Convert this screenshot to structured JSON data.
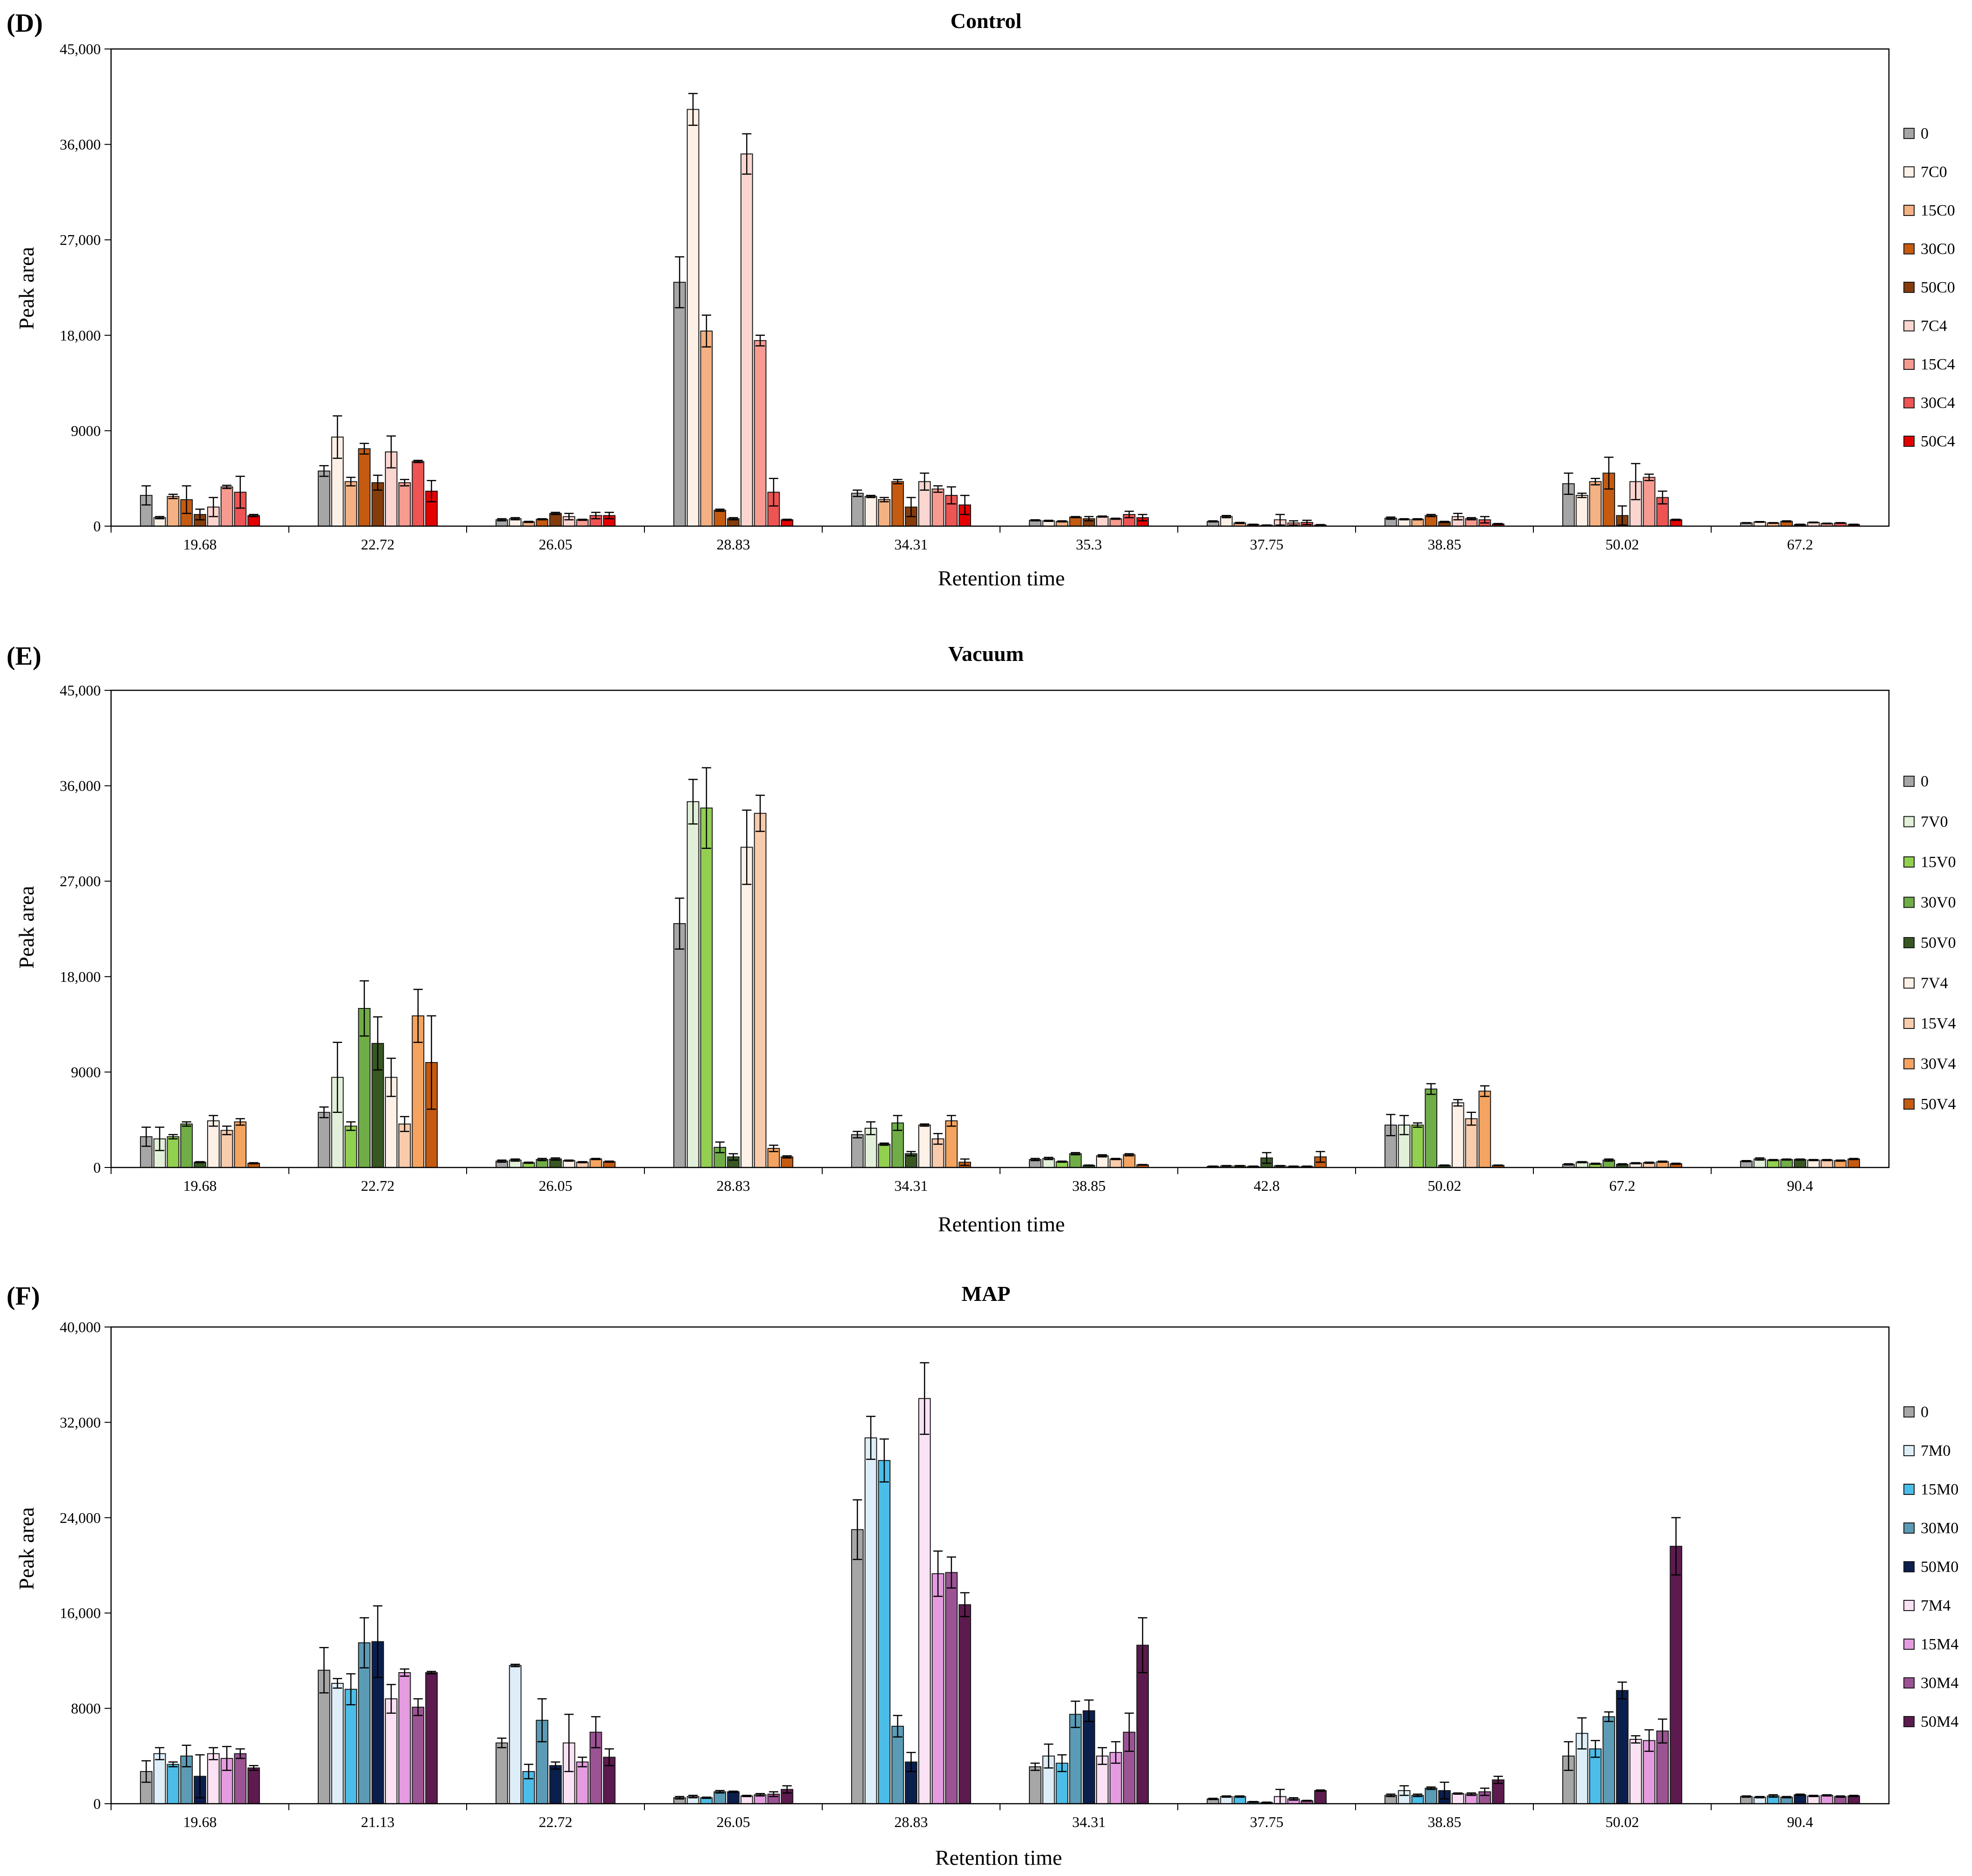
{
  "chart_data": [
    {
      "type": "bar",
      "panel_label": "(D)",
      "title": "Control",
      "xlabel": "Retention time",
      "ylabel": "Peak area",
      "ylim": [
        0,
        45000
      ],
      "yticks": [
        "0",
        "9000",
        "18,000",
        "27,000",
        "36,000",
        "45,000"
      ],
      "legend_position": "right",
      "categories": [
        "19.68",
        "22.72",
        "26.05",
        "28.83",
        "34.31",
        "35.3",
        "37.75",
        "38.85",
        "50.02",
        "67.2"
      ],
      "series": [
        {
          "name": "0",
          "color": "#a6a6a6",
          "values": [
            2900,
            5200,
            600,
            23000,
            3100,
            550,
            450,
            750,
            4000,
            300
          ],
          "errors": [
            900,
            500,
            100,
            2400,
            300,
            50,
            50,
            100,
            1000,
            30
          ]
        },
        {
          "name": "7C0",
          "color": "#fdf0e6",
          "values": [
            800,
            8400,
            700,
            39300,
            2800,
            500,
            900,
            650,
            2900,
            400
          ],
          "errors": [
            100,
            2000,
            100,
            1500,
            100,
            50,
            100,
            50,
            200,
            30
          ]
        },
        {
          "name": "15C0",
          "color": "#f4b183",
          "values": [
            2800,
            4200,
            400,
            18400,
            2500,
            450,
            300,
            650,
            4200,
            300
          ],
          "errors": [
            200,
            400,
            50,
            1500,
            200,
            50,
            50,
            50,
            300,
            30
          ]
        },
        {
          "name": "30C0",
          "color": "#c55a11",
          "values": [
            2500,
            7300,
            650,
            1500,
            4200,
            850,
            150,
            1000,
            5000,
            450
          ],
          "errors": [
            1300,
            500,
            50,
            100,
            200,
            50,
            30,
            100,
            1500,
            50
          ]
        },
        {
          "name": "50C0",
          "color": "#843c0c",
          "values": [
            1100,
            4100,
            1200,
            700,
            1800,
            700,
            80,
            400,
            1000,
            150
          ],
          "errors": [
            500,
            700,
            100,
            100,
            900,
            200,
            30,
            50,
            900,
            30
          ]
        },
        {
          "name": "7C4",
          "color": "#fbd5cf",
          "values": [
            1800,
            7000,
            900,
            35100,
            4200,
            900,
            600,
            900,
            4200,
            350
          ],
          "errors": [
            900,
            1500,
            300,
            1900,
            800,
            50,
            500,
            300,
            1700,
            30
          ]
        },
        {
          "name": "15C4",
          "color": "#f79b91",
          "values": [
            3700,
            4100,
            600,
            17500,
            3500,
            700,
            300,
            700,
            4600,
            250
          ],
          "errors": [
            150,
            300,
            50,
            500,
            300,
            50,
            200,
            100,
            300,
            30
          ]
        },
        {
          "name": "30C4",
          "color": "#ee5454",
          "values": [
            3200,
            6100,
            1000,
            3200,
            2900,
            1100,
            350,
            600,
            2700,
            300
          ],
          "errors": [
            1500,
            100,
            300,
            1300,
            800,
            300,
            200,
            300,
            600,
            30
          ]
        },
        {
          "name": "50C4",
          "color": "#e50000",
          "values": [
            1000,
            3300,
            1000,
            600,
            2000,
            800,
            100,
            200,
            600,
            150
          ],
          "errors": [
            100,
            1000,
            300,
            50,
            900,
            300,
            50,
            50,
            50,
            30
          ]
        }
      ]
    },
    {
      "type": "bar",
      "panel_label": "(E)",
      "title": "Vacuum",
      "xlabel": "Retention time",
      "ylabel": "Peak area",
      "ylim": [
        0,
        45000
      ],
      "yticks": [
        "0",
        "9000",
        "18,000",
        "27,000",
        "36,000",
        "45,000"
      ],
      "legend_position": "right",
      "categories": [
        "19.68",
        "22.72",
        "26.05",
        "28.83",
        "34.31",
        "38.85",
        "42.8",
        "50.02",
        "67.2",
        "90.4"
      ],
      "series": [
        {
          "name": "0",
          "color": "#a6a6a6",
          "values": [
            2900,
            5200,
            600,
            23000,
            3100,
            750,
            100,
            4000,
            300,
            600
          ],
          "errors": [
            900,
            500,
            100,
            2400,
            300,
            100,
            30,
            1000,
            50,
            50
          ]
        },
        {
          "name": "7V0",
          "color": "#e2f0d9",
          "values": [
            2700,
            8500,
            700,
            34500,
            3700,
            850,
            150,
            4000,
            500,
            800
          ],
          "errors": [
            1100,
            3300,
            100,
            2100,
            600,
            100,
            30,
            900,
            50,
            100
          ]
        },
        {
          "name": "15V0",
          "color": "#92d050",
          "values": [
            2900,
            3900,
            450,
            33900,
            2200,
            550,
            150,
            4000,
            350,
            700
          ],
          "errors": [
            200,
            400,
            50,
            3800,
            100,
            50,
            30,
            200,
            50,
            50
          ]
        },
        {
          "name": "30V0",
          "color": "#70ad47",
          "values": [
            4100,
            15000,
            750,
            1900,
            4200,
            1300,
            100,
            7400,
            700,
            750
          ],
          "errors": [
            200,
            2600,
            100,
            500,
            700,
            100,
            30,
            500,
            100,
            50
          ]
        },
        {
          "name": "50V0",
          "color": "#385723",
          "values": [
            500,
            11700,
            800,
            1000,
            1300,
            200,
            900,
            200,
            300,
            750
          ],
          "errors": [
            50,
            2500,
            100,
            300,
            200,
            30,
            500,
            30,
            50,
            50
          ]
        },
        {
          "name": "7V4",
          "color": "#fdf0e6",
          "values": [
            4400,
            8500,
            650,
            30200,
            4000,
            1100,
            150,
            6100,
            400,
            700
          ],
          "errors": [
            500,
            1800,
            50,
            3500,
            100,
            100,
            30,
            300,
            50,
            50
          ]
        },
        {
          "name": "15V4",
          "color": "#f8cbad",
          "values": [
            3500,
            4100,
            500,
            33400,
            2700,
            800,
            100,
            4600,
            450,
            700
          ],
          "errors": [
            400,
            700,
            50,
            1700,
            500,
            50,
            30,
            600,
            50,
            50
          ]
        },
        {
          "name": "30V4",
          "color": "#f4a460",
          "values": [
            4300,
            14300,
            800,
            1800,
            4400,
            1200,
            100,
            7200,
            550,
            650
          ],
          "errors": [
            300,
            2500,
            50,
            300,
            500,
            100,
            30,
            500,
            50,
            50
          ]
        },
        {
          "name": "50V4",
          "color": "#c55a11",
          "values": [
            400,
            9900,
            550,
            1000,
            500,
            250,
            1000,
            200,
            350,
            800
          ],
          "errors": [
            50,
            4400,
            50,
            100,
            300,
            30,
            500,
            30,
            50,
            50
          ]
        }
      ]
    },
    {
      "type": "bar",
      "panel_label": "(F)",
      "title": "MAP",
      "xlabel": "Retention time",
      "ylabel": "Peak area",
      "ylim": [
        0,
        40000
      ],
      "yticks": [
        "0",
        "8000",
        "16,000",
        "24,000",
        "32,000",
        "40,000"
      ],
      "legend_position": "right",
      "categories": [
        "19.68",
        "21.13",
        "22.72",
        "26.05",
        "28.83",
        "34.31",
        "37.75",
        "38.85",
        "50.02",
        "90.4"
      ],
      "series": [
        {
          "name": "0",
          "color": "#a6a6a6",
          "values": [
            2700,
            11200,
            5100,
            500,
            23000,
            3100,
            400,
            700,
            4000,
            600
          ],
          "errors": [
            900,
            1900,
            400,
            100,
            2500,
            300,
            50,
            100,
            1200,
            50
          ]
        },
        {
          "name": "7M0",
          "color": "#deeef8",
          "values": [
            4200,
            10100,
            11600,
            600,
            30700,
            4000,
            600,
            1100,
            5900,
            550
          ],
          "errors": [
            500,
            400,
            100,
            100,
            1800,
            1000,
            50,
            400,
            1300,
            50
          ]
        },
        {
          "name": "15M0",
          "color": "#4cbde8",
          "values": [
            3300,
            9600,
            2700,
            500,
            28800,
            3400,
            600,
            700,
            4600,
            650
          ],
          "errors": [
            200,
            1300,
            600,
            50,
            1800,
            700,
            50,
            100,
            700,
            100
          ]
        },
        {
          "name": "30M0",
          "color": "#5b9bb5",
          "values": [
            4000,
            13500,
            7000,
            1000,
            6500,
            7500,
            150,
            1300,
            7300,
            550
          ],
          "errors": [
            900,
            2100,
            1800,
            100,
            900,
            1100,
            30,
            100,
            400,
            50
          ]
        },
        {
          "name": "50M0",
          "color": "#0b1f4d",
          "values": [
            2300,
            13600,
            3200,
            1000,
            3500,
            7800,
            100,
            1100,
            9500,
            750
          ],
          "errors": [
            1800,
            3000,
            300,
            50,
            800,
            900,
            30,
            700,
            700,
            50
          ]
        },
        {
          "name": "7M4",
          "color": "#fbe1f4",
          "values": [
            4200,
            8800,
            5100,
            650,
            34000,
            4000,
            600,
            850,
            5400,
            650
          ],
          "errors": [
            500,
            1200,
            2400,
            50,
            3000,
            700,
            600,
            50,
            300,
            50
          ]
        },
        {
          "name": "15M4",
          "color": "#e59be0",
          "values": [
            3800,
            11000,
            3500,
            750,
            19300,
            4300,
            400,
            800,
            5300,
            700
          ],
          "errors": [
            1000,
            300,
            400,
            100,
            1900,
            900,
            100,
            100,
            900,
            50
          ]
        },
        {
          "name": "30M4",
          "color": "#9b5393",
          "values": [
            4200,
            8100,
            6000,
            800,
            19400,
            6000,
            250,
            1000,
            6100,
            600
          ],
          "errors": [
            400,
            700,
            1300,
            200,
            1300,
            1600,
            30,
            300,
            1000,
            50
          ]
        },
        {
          "name": "50M4",
          "color": "#5c1a4e",
          "values": [
            3000,
            11000,
            3900,
            1200,
            16700,
            13300,
            1100,
            2000,
            21600,
            650
          ],
          "errors": [
            200,
            100,
            700,
            300,
            1000,
            2300,
            50,
            300,
            2400,
            50
          ]
        }
      ]
    }
  ]
}
